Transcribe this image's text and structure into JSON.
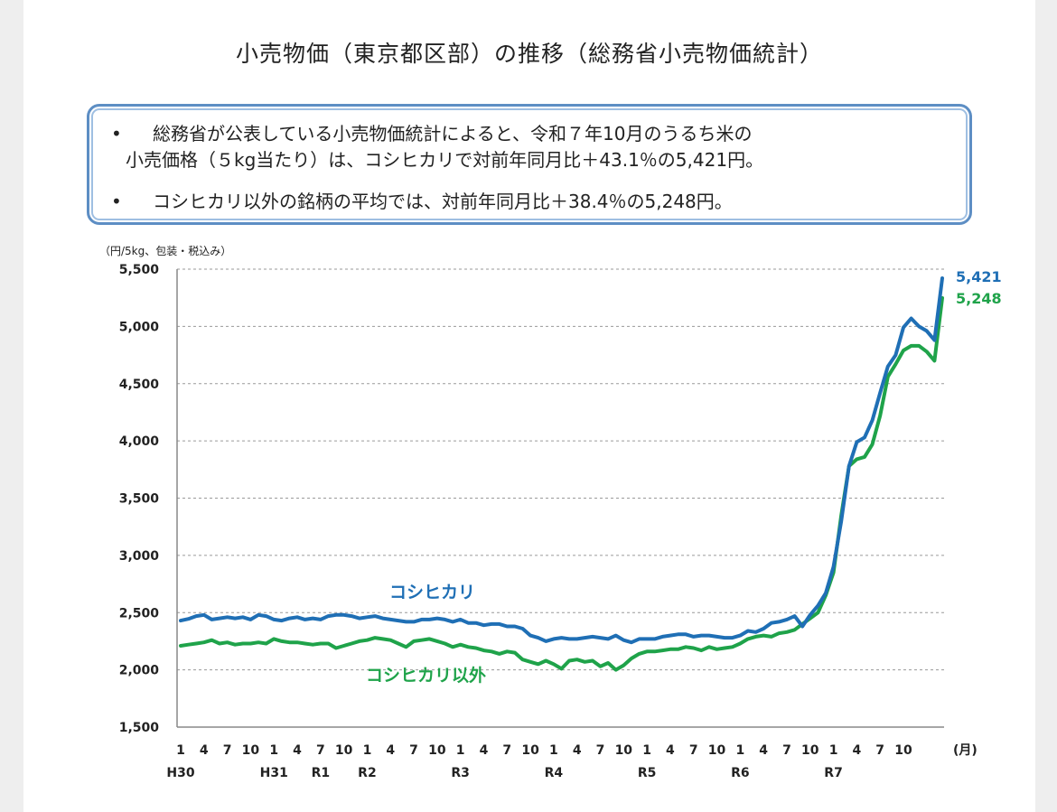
{
  "page": {
    "title": "小売物価（東京都区部）の推移（総務省小売物価統計）"
  },
  "notes": [
    {
      "bullet": "•",
      "line1": "総務省が公表している小売物価統計によると、令和７年10月のうるち米の",
      "line2": "小売価格（５kg当たり）は、コシヒカリで対前年同月比＋43.1％の5,421円。"
    },
    {
      "bullet": "•",
      "line1": "コシヒカリ以外の銘柄の平均では、対前年同月比＋38.4％の5,248円。"
    }
  ],
  "chart_data": {
    "type": "line",
    "unit_label": "（円/5kg、包装・税込み）",
    "x_unit": "(月)",
    "ylim": [
      1500,
      5500
    ],
    "yticks": [
      1500,
      2000,
      2500,
      3000,
      3500,
      4000,
      4500,
      5000,
      5500
    ],
    "ytick_labels": [
      "1,500",
      "2,000",
      "2,500",
      "3,000",
      "3,500",
      "4,000",
      "4,500",
      "5,000",
      "5,500"
    ],
    "grid": true,
    "x_month_ticks": [
      "1",
      "4",
      "7",
      "10",
      "1",
      "4",
      "7",
      "10",
      "1",
      "4",
      "7",
      "10",
      "1",
      "4",
      "7",
      "10",
      "1",
      "4",
      "7",
      "10",
      "1",
      "4",
      "7",
      "10",
      "1",
      "4",
      "7",
      "10",
      "1",
      "4",
      "7",
      "10"
    ],
    "era_labels": [
      {
        "label": "H30",
        "month_index": 0
      },
      {
        "label": "H31",
        "month_index": 12
      },
      {
        "label": "R1",
        "month_index": 18
      },
      {
        "label": "R2",
        "month_index": 24
      },
      {
        "label": "R3",
        "month_index": 36
      },
      {
        "label": "R4",
        "month_index": 48
      },
      {
        "label": "R5",
        "month_index": 60
      },
      {
        "label": "R6",
        "month_index": 72
      },
      {
        "label": "R7",
        "month_index": 84
      }
    ],
    "series": [
      {
        "name": "コシヒカリ",
        "color": "#1f6fb5",
        "end_label": "5,421",
        "values": [
          2430,
          2445,
          2470,
          2480,
          2440,
          2450,
          2460,
          2450,
          2460,
          2440,
          2480,
          2470,
          2440,
          2430,
          2450,
          2460,
          2440,
          2450,
          2440,
          2470,
          2480,
          2480,
          2470,
          2450,
          2460,
          2470,
          2450,
          2440,
          2430,
          2420,
          2420,
          2440,
          2440,
          2450,
          2440,
          2420,
          2440,
          2410,
          2410,
          2390,
          2400,
          2400,
          2380,
          2380,
          2360,
          2300,
          2280,
          2250,
          2270,
          2280,
          2270,
          2270,
          2280,
          2290,
          2280,
          2270,
          2300,
          2260,
          2240,
          2270,
          2270,
          2270,
          2290,
          2300,
          2310,
          2310,
          2290,
          2300,
          2300,
          2290,
          2280,
          2280,
          2300,
          2340,
          2330,
          2360,
          2410,
          2420,
          2440,
          2470,
          2380,
          2480,
          2560,
          2670,
          2900,
          3300,
          3780,
          3990,
          4030,
          4180,
          4420,
          4650,
          4750,
          4990,
          5070,
          5000,
          4960,
          4880,
          5421
        ]
      },
      {
        "name": "コシヒカリ以外",
        "color": "#1fa34a",
        "end_label": "5,248",
        "values": [
          2210,
          2220,
          2230,
          2240,
          2260,
          2230,
          2240,
          2220,
          2230,
          2230,
          2240,
          2230,
          2270,
          2250,
          2240,
          2240,
          2230,
          2220,
          2230,
          2230,
          2190,
          2210,
          2230,
          2250,
          2260,
          2280,
          2270,
          2260,
          2230,
          2200,
          2250,
          2260,
          2270,
          2250,
          2230,
          2200,
          2220,
          2200,
          2190,
          2170,
          2160,
          2140,
          2160,
          2150,
          2090,
          2070,
          2050,
          2080,
          2050,
          2010,
          2080,
          2090,
          2070,
          2080,
          2030,
          2060,
          2000,
          2040,
          2100,
          2140,
          2160,
          2160,
          2170,
          2180,
          2180,
          2200,
          2190,
          2170,
          2200,
          2180,
          2190,
          2200,
          2230,
          2270,
          2290,
          2300,
          2290,
          2320,
          2330,
          2350,
          2400,
          2450,
          2500,
          2650,
          2850,
          3350,
          3780,
          3840,
          3860,
          3970,
          4220,
          4560,
          4670,
          4790,
          4830,
          4830,
          4780,
          4700,
          5248
        ]
      }
    ],
    "series_labels": [
      {
        "text": "コシヒカリ",
        "color": "#1f6fb5"
      },
      {
        "text": "コシヒカリ以外",
        "color": "#1fa34a"
      }
    ]
  }
}
